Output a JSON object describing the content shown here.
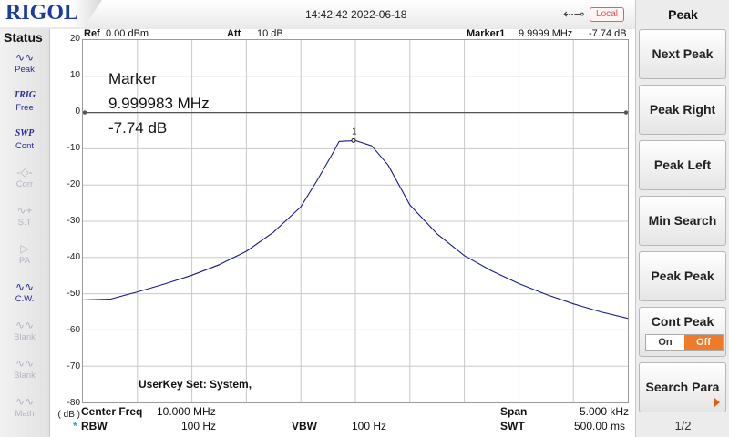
{
  "brand": "RIGOL",
  "datetime": "14:42:42 2022-06-18",
  "usb_icon": "usb-icon",
  "local_badge": "Local",
  "status": {
    "title": "Status",
    "items": [
      {
        "icon": "∿∿",
        "label": "Peak",
        "state": "active"
      },
      {
        "icon": "TRIG",
        "label": "Free",
        "state": "active"
      },
      {
        "icon": "SWP",
        "label": "Cont",
        "state": "active"
      },
      {
        "icon": "-◇-",
        "label": "Corr",
        "state": "dim"
      },
      {
        "icon": "∿+",
        "label": "S.T",
        "state": "dim"
      },
      {
        "icon": "▷",
        "label": "PA",
        "state": "dim"
      },
      {
        "icon": "∿∿",
        "label": "C.W.",
        "state": "active"
      },
      {
        "icon": "∿∿",
        "label": "Blank",
        "state": "dim"
      },
      {
        "icon": "∿∿",
        "label": "Blank",
        "state": "dim"
      },
      {
        "icon": "∿∿",
        "label": "Math",
        "state": "dim"
      }
    ]
  },
  "header": {
    "ref_label": "Ref",
    "ref_value": "0.00 dBm",
    "att_label": "Att",
    "att_value": "10 dB",
    "marker_label": "Marker1",
    "marker_freq": "9.9999 MHz",
    "marker_amp": "-7.74 dB"
  },
  "marker_readout": {
    "title": "Marker",
    "freq": "9.999983 MHz",
    "amp": "-7.74 dB",
    "number": "1"
  },
  "y_axis": {
    "unit": "( dB )",
    "ticks": [
      "20",
      "10",
      "0",
      "-10",
      "-20",
      "-30",
      "-40",
      "-50",
      "-60",
      "-70",
      "-80"
    ]
  },
  "userkey": "UserKey Set:    System,",
  "bottom": {
    "center_label": "Center Freq",
    "center_value": "10.000 MHz",
    "span_label": "Span",
    "span_value": "5.000 kHz",
    "rbw_marker": "*",
    "rbw_label": "RBW",
    "rbw_value": "100 Hz",
    "vbw_label": "VBW",
    "vbw_value": "100 Hz",
    "swt_label": "SWT",
    "swt_value": "500.00 ms"
  },
  "chart_data": {
    "type": "line",
    "ylim": [
      -80,
      20
    ],
    "xlim": [
      9.9975,
      10.0025
    ],
    "reference_level": 0,
    "x_unit": "MHz",
    "y_unit": "dB",
    "grid": true,
    "series": [
      {
        "color": "#1a1a8c",
        "x": [
          9.9975,
          9.99775,
          9.998,
          9.99825,
          9.9985,
          9.99875,
          9.999,
          9.99925,
          9.9995,
          9.99965,
          9.9998,
          9.99985,
          10.0,
          10.00015,
          10.0003,
          10.0005,
          10.00075,
          10.001,
          10.00125,
          10.0015,
          10.00175,
          10.002,
          10.00225,
          10.0025
        ],
        "y": [
          -51.7,
          -51.5,
          -49.5,
          -47.3,
          -44.9,
          -42.0,
          -38.3,
          -33.0,
          -26.0,
          -18.7,
          -10.8,
          -8.0,
          -7.74,
          -9.2,
          -14.5,
          -25.5,
          -33.5,
          -39.5,
          -43.7,
          -47.2,
          -50.2,
          -52.8,
          -55.0,
          -56.8
        ]
      }
    ],
    "markers": [
      {
        "x": 9.999983,
        "y": -7.74,
        "label": "1"
      }
    ],
    "reference_line": 0
  },
  "softkeys": {
    "title": "Peak",
    "buttons": [
      "Next Peak",
      "Peak Right",
      "Peak Left",
      "Min Search",
      "Peak Peak"
    ],
    "cont_peak": {
      "label": "Cont Peak",
      "on": "On",
      "off": "Off",
      "selected": "Off"
    },
    "search_para": "Search Para",
    "page": "1/2"
  },
  "colors": {
    "trace": "#1a1a8c",
    "brand": "#1a3c9e",
    "off_active": "#f07a2a",
    "local_badge": "#e05050"
  }
}
